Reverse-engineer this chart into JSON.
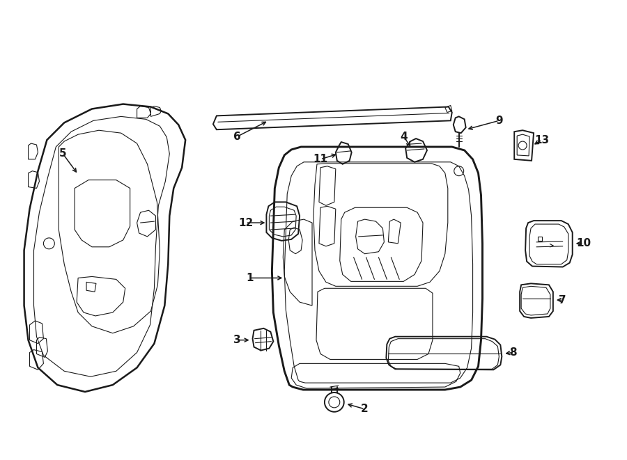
{
  "bg_color": "#ffffff",
  "line_color": "#1a1a1a",
  "lw": 1.4,
  "tlw": 0.8,
  "fig_width": 9.0,
  "fig_height": 6.61,
  "dpi": 100
}
